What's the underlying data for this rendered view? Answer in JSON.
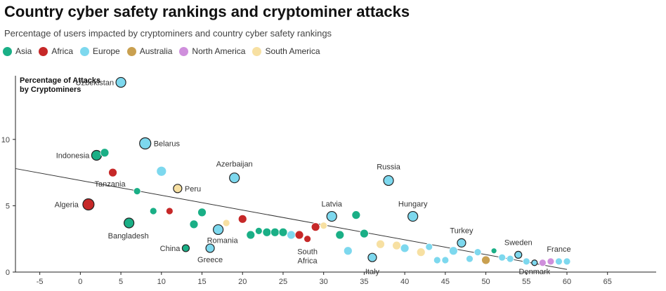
{
  "title": "Country cyber safety rankings and cryptominer attacks",
  "subtitle": "Percentage of users impacted by cryptominers and country cyber safety rankings",
  "legend": [
    {
      "name": "Asia",
      "color": "#1aaf86"
    },
    {
      "name": "Africa",
      "color": "#c62828"
    },
    {
      "name": "Europe",
      "color": "#7dd8ee"
    },
    {
      "name": "Australia",
      "color": "#c9a050"
    },
    {
      "name": "North America",
      "color": "#cf8fdc"
    },
    {
      "name": "South America",
      "color": "#f7e0a2"
    }
  ],
  "chart_data": {
    "type": "scatter",
    "title": "Country cyber safety rankings and cryptominer attacks",
    "subtitle": "Percentage of users impacted by cryptominers and country cyber safety rankings",
    "xlabel": "",
    "ylabel": "Percentage of Attacks by Cryptominers",
    "xlim": [
      -8,
      71
    ],
    "ylim": [
      0,
      14.8
    ],
    "x_ticks": [
      -5,
      0,
      5,
      10,
      15,
      20,
      25,
      30,
      35,
      40,
      45,
      50,
      55,
      60,
      65
    ],
    "y_ticks": [
      0,
      5,
      10
    ],
    "trendline": {
      "x1": -8,
      "y1": 7.8,
      "x2": 60,
      "y2": 0.2
    },
    "points": [
      {
        "x": 5,
        "y": 14.3,
        "region": "Europe",
        "label": "Uzbekistan",
        "size": 7,
        "outline": true
      },
      {
        "x": 8,
        "y": 9.7,
        "region": "Europe",
        "label": "Belarus",
        "size": 8,
        "outline": true
      },
      {
        "x": 2,
        "y": 8.8,
        "region": "Asia",
        "label": "Indonesia",
        "size": 7,
        "outline": true
      },
      {
        "x": 3,
        "y": 9.0,
        "region": "Asia",
        "label": "",
        "size": 6,
        "outline": false
      },
      {
        "x": 4,
        "y": 7.5,
        "region": "Africa",
        "label": "Tanzania",
        "size": 6,
        "outline": false
      },
      {
        "x": 10,
        "y": 7.6,
        "region": "Europe",
        "label": "",
        "size": 7,
        "outline": false
      },
      {
        "x": 19,
        "y": 7.1,
        "region": "Europe",
        "label": "Azerbaijan",
        "size": 7,
        "outline": true
      },
      {
        "x": 12,
        "y": 6.3,
        "region": "South America",
        "label": "Peru",
        "size": 6,
        "outline": true
      },
      {
        "x": 7,
        "y": 6.1,
        "region": "Asia",
        "label": "",
        "size": 5,
        "outline": false
      },
      {
        "x": 38,
        "y": 6.9,
        "region": "Europe",
        "label": "Russia",
        "size": 7,
        "outline": true
      },
      {
        "x": 1,
        "y": 5.1,
        "region": "Africa",
        "label": "Algeria",
        "size": 8,
        "outline": true
      },
      {
        "x": 9,
        "y": 4.6,
        "region": "Asia",
        "label": "",
        "size": 5,
        "outline": false
      },
      {
        "x": 11,
        "y": 4.6,
        "region": "Africa",
        "label": "",
        "size": 5,
        "outline": false
      },
      {
        "x": 6,
        "y": 3.7,
        "region": "Asia",
        "label": "Bangladesh",
        "size": 7,
        "outline": true
      },
      {
        "x": 14,
        "y": 3.6,
        "region": "Asia",
        "label": "",
        "size": 6,
        "outline": false
      },
      {
        "x": 15,
        "y": 4.5,
        "region": "Asia",
        "label": "",
        "size": 6,
        "outline": false
      },
      {
        "x": 17,
        "y": 3.2,
        "region": "Europe",
        "label": "Romania",
        "size": 7,
        "outline": true
      },
      {
        "x": 18,
        "y": 3.7,
        "region": "South America",
        "label": "",
        "size": 5,
        "outline": false
      },
      {
        "x": 20,
        "y": 4.0,
        "region": "Africa",
        "label": "",
        "size": 6,
        "outline": false
      },
      {
        "x": 21,
        "y": 2.8,
        "region": "Asia",
        "label": "",
        "size": 6,
        "outline": false
      },
      {
        "x": 22,
        "y": 3.1,
        "region": "Asia",
        "label": "",
        "size": 5,
        "outline": false
      },
      {
        "x": 23,
        "y": 3.0,
        "region": "Asia",
        "label": "",
        "size": 6,
        "outline": false
      },
      {
        "x": 24,
        "y": 3.0,
        "region": "Asia",
        "label": "",
        "size": 6,
        "outline": false
      },
      {
        "x": 25,
        "y": 3.0,
        "region": "Asia",
        "label": "",
        "size": 6,
        "outline": false
      },
      {
        "x": 26,
        "y": 2.8,
        "region": "Europe",
        "label": "",
        "size": 6,
        "outline": false
      },
      {
        "x": 27,
        "y": 2.8,
        "region": "Africa",
        "label": "",
        "size": 6,
        "outline": false
      },
      {
        "x": 28,
        "y": 2.5,
        "region": "Africa",
        "label": "South Africa",
        "size": 5,
        "outline": false
      },
      {
        "x": 29,
        "y": 3.4,
        "region": "Africa",
        "label": "",
        "size": 6,
        "outline": false
      },
      {
        "x": 30,
        "y": 3.5,
        "region": "South America",
        "label": "",
        "size": 5,
        "outline": false
      },
      {
        "x": 31,
        "y": 4.2,
        "region": "Europe",
        "label": "Latvia",
        "size": 7,
        "outline": true
      },
      {
        "x": 32,
        "y": 2.8,
        "region": "Asia",
        "label": "",
        "size": 6,
        "outline": false
      },
      {
        "x": 33,
        "y": 1.6,
        "region": "Europe",
        "label": "",
        "size": 6,
        "outline": false
      },
      {
        "x": 34,
        "y": 4.3,
        "region": "Asia",
        "label": "",
        "size": 6,
        "outline": false
      },
      {
        "x": 35,
        "y": 2.9,
        "region": "Asia",
        "label": "",
        "size": 6,
        "outline": false
      },
      {
        "x": 36,
        "y": 1.1,
        "region": "Europe",
        "label": "Italy",
        "size": 6,
        "outline": true
      },
      {
        "x": 37,
        "y": 2.1,
        "region": "South America",
        "label": "",
        "size": 6,
        "outline": false
      },
      {
        "x": 39,
        "y": 2.0,
        "region": "South America",
        "label": "",
        "size": 6,
        "outline": false
      },
      {
        "x": 40,
        "y": 1.8,
        "region": "Europe",
        "label": "",
        "size": 6,
        "outline": false
      },
      {
        "x": 41,
        "y": 4.2,
        "region": "Europe",
        "label": "Hungary",
        "size": 7,
        "outline": true
      },
      {
        "x": 42,
        "y": 1.5,
        "region": "South America",
        "label": "",
        "size": 6,
        "outline": false
      },
      {
        "x": 43,
        "y": 1.9,
        "region": "Europe",
        "label": "",
        "size": 5,
        "outline": false
      },
      {
        "x": 44,
        "y": 0.9,
        "region": "Europe",
        "label": "",
        "size": 5,
        "outline": false
      },
      {
        "x": 45,
        "y": 0.9,
        "region": "Europe",
        "label": "",
        "size": 5,
        "outline": false
      },
      {
        "x": 46,
        "y": 1.6,
        "region": "Europe",
        "label": "",
        "size": 6,
        "outline": false
      },
      {
        "x": 47,
        "y": 2.2,
        "region": "Europe",
        "label": "Turkey",
        "size": 6,
        "outline": true
      },
      {
        "x": 48,
        "y": 1.0,
        "region": "Europe",
        "label": "",
        "size": 5,
        "outline": false
      },
      {
        "x": 49,
        "y": 1.5,
        "region": "Europe",
        "label": "",
        "size": 5,
        "outline": false
      },
      {
        "x": 50,
        "y": 0.9,
        "region": "Australia",
        "label": "",
        "size": 6,
        "outline": false
      },
      {
        "x": 51,
        "y": 1.6,
        "region": "Asia",
        "label": "",
        "size": 4,
        "outline": false
      },
      {
        "x": 52,
        "y": 1.1,
        "region": "Europe",
        "label": "",
        "size": 5,
        "outline": false
      },
      {
        "x": 53,
        "y": 1.0,
        "region": "Europe",
        "label": "",
        "size": 5,
        "outline": false
      },
      {
        "x": 54,
        "y": 1.3,
        "region": "Europe",
        "label": "Sweden",
        "size": 5,
        "outline": true
      },
      {
        "x": 55,
        "y": 0.8,
        "region": "Europe",
        "label": "",
        "size": 5,
        "outline": false
      },
      {
        "x": 56,
        "y": 0.7,
        "region": "Europe",
        "label": "Denmark",
        "size": 4,
        "outline": true
      },
      {
        "x": 57,
        "y": 0.7,
        "region": "North America",
        "label": "",
        "size": 5,
        "outline": false
      },
      {
        "x": 58,
        "y": 0.8,
        "region": "North America",
        "label": "",
        "size": 5,
        "outline": false
      },
      {
        "x": 59,
        "y": 0.8,
        "region": "Europe",
        "label": "France",
        "size": 5,
        "outline": false
      },
      {
        "x": 60,
        "y": 0.8,
        "region": "Europe",
        "label": "",
        "size": 5,
        "outline": false
      },
      {
        "x": 13,
        "y": 1.8,
        "region": "Asia",
        "label": "China",
        "size": 5,
        "outline": true
      },
      {
        "x": 16,
        "y": 1.8,
        "region": "Europe",
        "label": "Greece",
        "size": 6,
        "outline": true
      }
    ]
  }
}
